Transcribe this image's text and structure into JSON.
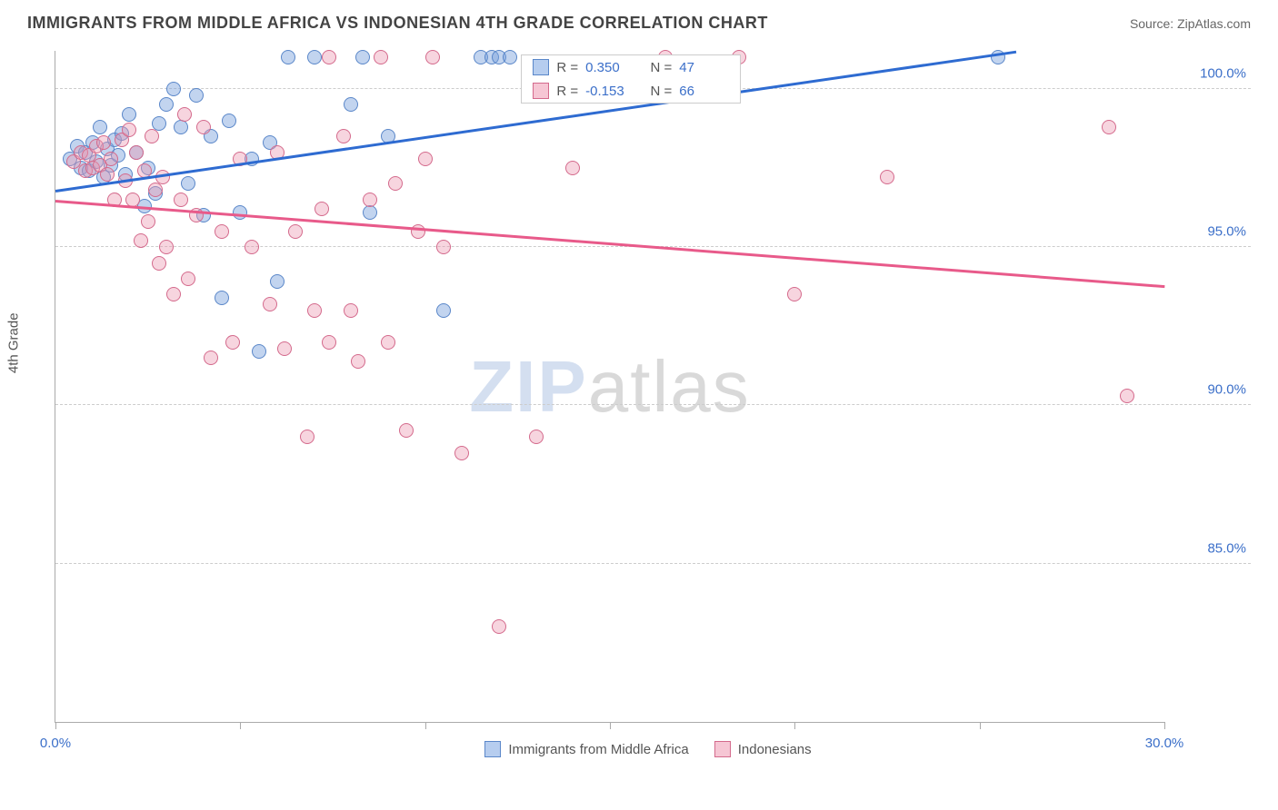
{
  "header": {
    "title": "IMMIGRANTS FROM MIDDLE AFRICA VS INDONESIAN 4TH GRADE CORRELATION CHART",
    "source": "Source: ZipAtlas.com"
  },
  "y_axis_label": "4th Grade",
  "watermark": {
    "part1": "ZIP",
    "part2": "atlas"
  },
  "chart": {
    "type": "scatter",
    "background_color": "#ffffff",
    "grid_color": "#cccccc",
    "axis_color": "#aaaaaa",
    "tick_color": "#3b6fc9",
    "xlim": [
      0,
      30
    ],
    "ylim": [
      80,
      101.2
    ],
    "x_ticks": [
      0,
      5,
      10,
      15,
      20,
      25,
      30
    ],
    "x_tick_labels": [
      "0.0%",
      "",
      "",
      "",
      "",
      "",
      "30.0%"
    ],
    "y_ticks": [
      85,
      90,
      95,
      100
    ],
    "y_tick_labels": [
      "85.0%",
      "90.0%",
      "95.0%",
      "100.0%"
    ],
    "marker_radius": 8,
    "marker_border_width": 1.2,
    "line_width": 2.5,
    "series": [
      {
        "name": "Immigrants from Middle Africa",
        "fill": "rgba(120,160,220,0.45)",
        "stroke": "#5a87c9",
        "swatch_fill": "#b6cdef",
        "swatch_border": "#5a87c9",
        "line_color": "#2e6bd1",
        "R": "0.350",
        "N": "47",
        "trend": {
          "x1": 0,
          "y1": 96.8,
          "x2": 26,
          "y2": 101.2
        },
        "points": [
          [
            0.4,
            97.8
          ],
          [
            0.6,
            98.2
          ],
          [
            0.7,
            97.5
          ],
          [
            0.8,
            98.0
          ],
          [
            0.9,
            97.4
          ],
          [
            1.0,
            98.3
          ],
          [
            1.1,
            97.7
          ],
          [
            1.2,
            98.8
          ],
          [
            1.3,
            97.2
          ],
          [
            1.4,
            98.1
          ],
          [
            1.5,
            97.6
          ],
          [
            1.6,
            98.4
          ],
          [
            1.7,
            97.9
          ],
          [
            1.8,
            98.6
          ],
          [
            1.9,
            97.3
          ],
          [
            2.0,
            99.2
          ],
          [
            2.2,
            98.0
          ],
          [
            2.4,
            96.3
          ],
          [
            2.5,
            97.5
          ],
          [
            2.7,
            96.7
          ],
          [
            2.8,
            98.9
          ],
          [
            3.0,
            99.5
          ],
          [
            3.2,
            100.0
          ],
          [
            3.4,
            98.8
          ],
          [
            3.6,
            97.0
          ],
          [
            3.8,
            99.8
          ],
          [
            4.0,
            96.0
          ],
          [
            4.2,
            98.5
          ],
          [
            4.5,
            93.4
          ],
          [
            4.7,
            99.0
          ],
          [
            5.0,
            96.1
          ],
          [
            5.3,
            97.8
          ],
          [
            5.5,
            91.7
          ],
          [
            5.8,
            98.3
          ],
          [
            6.0,
            93.9
          ],
          [
            6.3,
            101.0
          ],
          [
            7.0,
            101.0
          ],
          [
            8.0,
            99.5
          ],
          [
            8.3,
            101.0
          ],
          [
            8.5,
            96.1
          ],
          [
            9.0,
            98.5
          ],
          [
            10.5,
            93.0
          ],
          [
            11.5,
            101.0
          ],
          [
            11.8,
            101.0
          ],
          [
            12.0,
            101.0
          ],
          [
            12.3,
            101.0
          ],
          [
            25.5,
            101.0
          ]
        ]
      },
      {
        "name": "Indonesians",
        "fill": "rgba(235,150,175,0.40)",
        "stroke": "#d46a8c",
        "swatch_fill": "#f6c6d4",
        "swatch_border": "#d46a8c",
        "line_color": "#e85a8a",
        "R": "-0.153",
        "N": "66",
        "trend": {
          "x1": 0,
          "y1": 96.5,
          "x2": 30,
          "y2": 93.8
        },
        "points": [
          [
            0.5,
            97.7
          ],
          [
            0.7,
            98.0
          ],
          [
            0.8,
            97.4
          ],
          [
            0.9,
            97.9
          ],
          [
            1.0,
            97.5
          ],
          [
            1.1,
            98.2
          ],
          [
            1.2,
            97.6
          ],
          [
            1.3,
            98.3
          ],
          [
            1.4,
            97.3
          ],
          [
            1.5,
            97.8
          ],
          [
            1.6,
            96.5
          ],
          [
            1.8,
            98.4
          ],
          [
            1.9,
            97.1
          ],
          [
            2.0,
            98.7
          ],
          [
            2.1,
            96.5
          ],
          [
            2.2,
            98.0
          ],
          [
            2.3,
            95.2
          ],
          [
            2.4,
            97.4
          ],
          [
            2.5,
            95.8
          ],
          [
            2.6,
            98.5
          ],
          [
            2.7,
            96.8
          ],
          [
            2.8,
            94.5
          ],
          [
            2.9,
            97.2
          ],
          [
            3.0,
            95.0
          ],
          [
            3.2,
            93.5
          ],
          [
            3.4,
            96.5
          ],
          [
            3.5,
            99.2
          ],
          [
            3.6,
            94.0
          ],
          [
            3.8,
            96.0
          ],
          [
            4.0,
            98.8
          ],
          [
            4.2,
            91.5
          ],
          [
            4.5,
            95.5
          ],
          [
            4.8,
            92.0
          ],
          [
            5.0,
            97.8
          ],
          [
            5.3,
            95.0
          ],
          [
            5.8,
            93.2
          ],
          [
            6.0,
            98.0
          ],
          [
            6.2,
            91.8
          ],
          [
            6.5,
            95.5
          ],
          [
            6.8,
            89.0
          ],
          [
            7.0,
            93.0
          ],
          [
            7.2,
            96.2
          ],
          [
            7.4,
            92.0
          ],
          [
            7.4,
            101.0
          ],
          [
            7.8,
            98.5
          ],
          [
            8.0,
            93.0
          ],
          [
            8.2,
            91.4
          ],
          [
            8.5,
            96.5
          ],
          [
            8.8,
            101.0
          ],
          [
            9.0,
            92.0
          ],
          [
            9.2,
            97.0
          ],
          [
            9.5,
            89.2
          ],
          [
            9.8,
            95.5
          ],
          [
            10.0,
            97.8
          ],
          [
            10.2,
            101.0
          ],
          [
            10.5,
            95.0
          ],
          [
            11.0,
            88.5
          ],
          [
            12.0,
            83.0
          ],
          [
            13.0,
            89.0
          ],
          [
            14.0,
            97.5
          ],
          [
            16.5,
            101.0
          ],
          [
            18.5,
            101.0
          ],
          [
            20.0,
            93.5
          ],
          [
            22.5,
            97.2
          ],
          [
            28.5,
            98.8
          ],
          [
            29.0,
            90.3
          ]
        ]
      }
    ]
  },
  "legend_bottom": [
    {
      "label": "Immigrants from Middle Africa",
      "fill": "#b6cdef",
      "border": "#5a87c9"
    },
    {
      "label": "Indonesians",
      "fill": "#f6c6d4",
      "border": "#d46a8c"
    }
  ]
}
